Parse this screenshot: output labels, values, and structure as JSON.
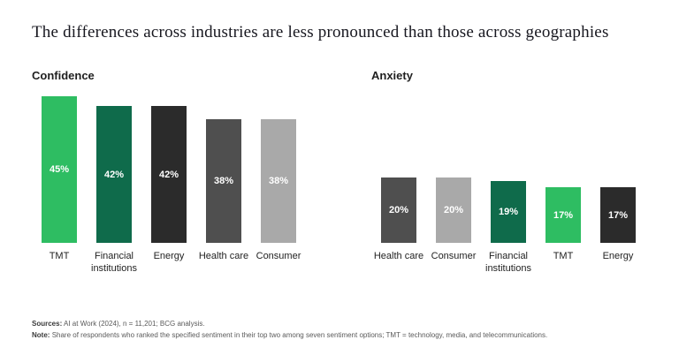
{
  "page": {
    "title": "The differences across industries are less pronounced than those across geographies"
  },
  "chart_data": [
    {
      "type": "bar",
      "title": "Confidence",
      "categories": [
        "TMT",
        "Financial institutions",
        "Energy",
        "Health care",
        "Consumer"
      ],
      "values": [
        45,
        42,
        42,
        38,
        38
      ],
      "value_labels": [
        "45%",
        "42%",
        "42%",
        "38%",
        "38%"
      ],
      "bar_colors": [
        "#2ebd62",
        "#0f6b4b",
        "#2b2b2b",
        "#4f4f4f",
        "#a9a9a9"
      ],
      "unit": "%",
      "ylim": [
        0,
        46
      ],
      "xlabel": "",
      "ylabel": "",
      "grid": false,
      "legend": "none"
    },
    {
      "type": "bar",
      "title": "Anxiety",
      "categories": [
        "Health care",
        "Consumer",
        "Financial institutions",
        "TMT",
        "Energy"
      ],
      "values": [
        20,
        20,
        19,
        17,
        17
      ],
      "value_labels": [
        "20%",
        "20%",
        "19%",
        "17%",
        "17%"
      ],
      "bar_colors": [
        "#4f4f4f",
        "#a9a9a9",
        "#0f6b4b",
        "#2ebd62",
        "#2b2b2b"
      ],
      "unit": "%",
      "ylim": [
        0,
        46
      ],
      "xlabel": "",
      "ylabel": "",
      "grid": false,
      "legend": "none"
    }
  ],
  "footer": {
    "sources_label": "Sources:",
    "sources_text": "AI at Work (2024), n = 11,201; BCG analysis.",
    "note_label": "Note:",
    "note_text": "Share of respondents who ranked the specified sentiment in their top two among seven sentiment options; TMT = technology, media, and telecommunications."
  },
  "colors": {
    "accent_green": "#2ebd62",
    "dark_green": "#0f6b4b",
    "near_black": "#2b2b2b",
    "dark_gray": "#4f4f4f",
    "light_gray": "#a9a9a9",
    "background": "#ffffff"
  }
}
